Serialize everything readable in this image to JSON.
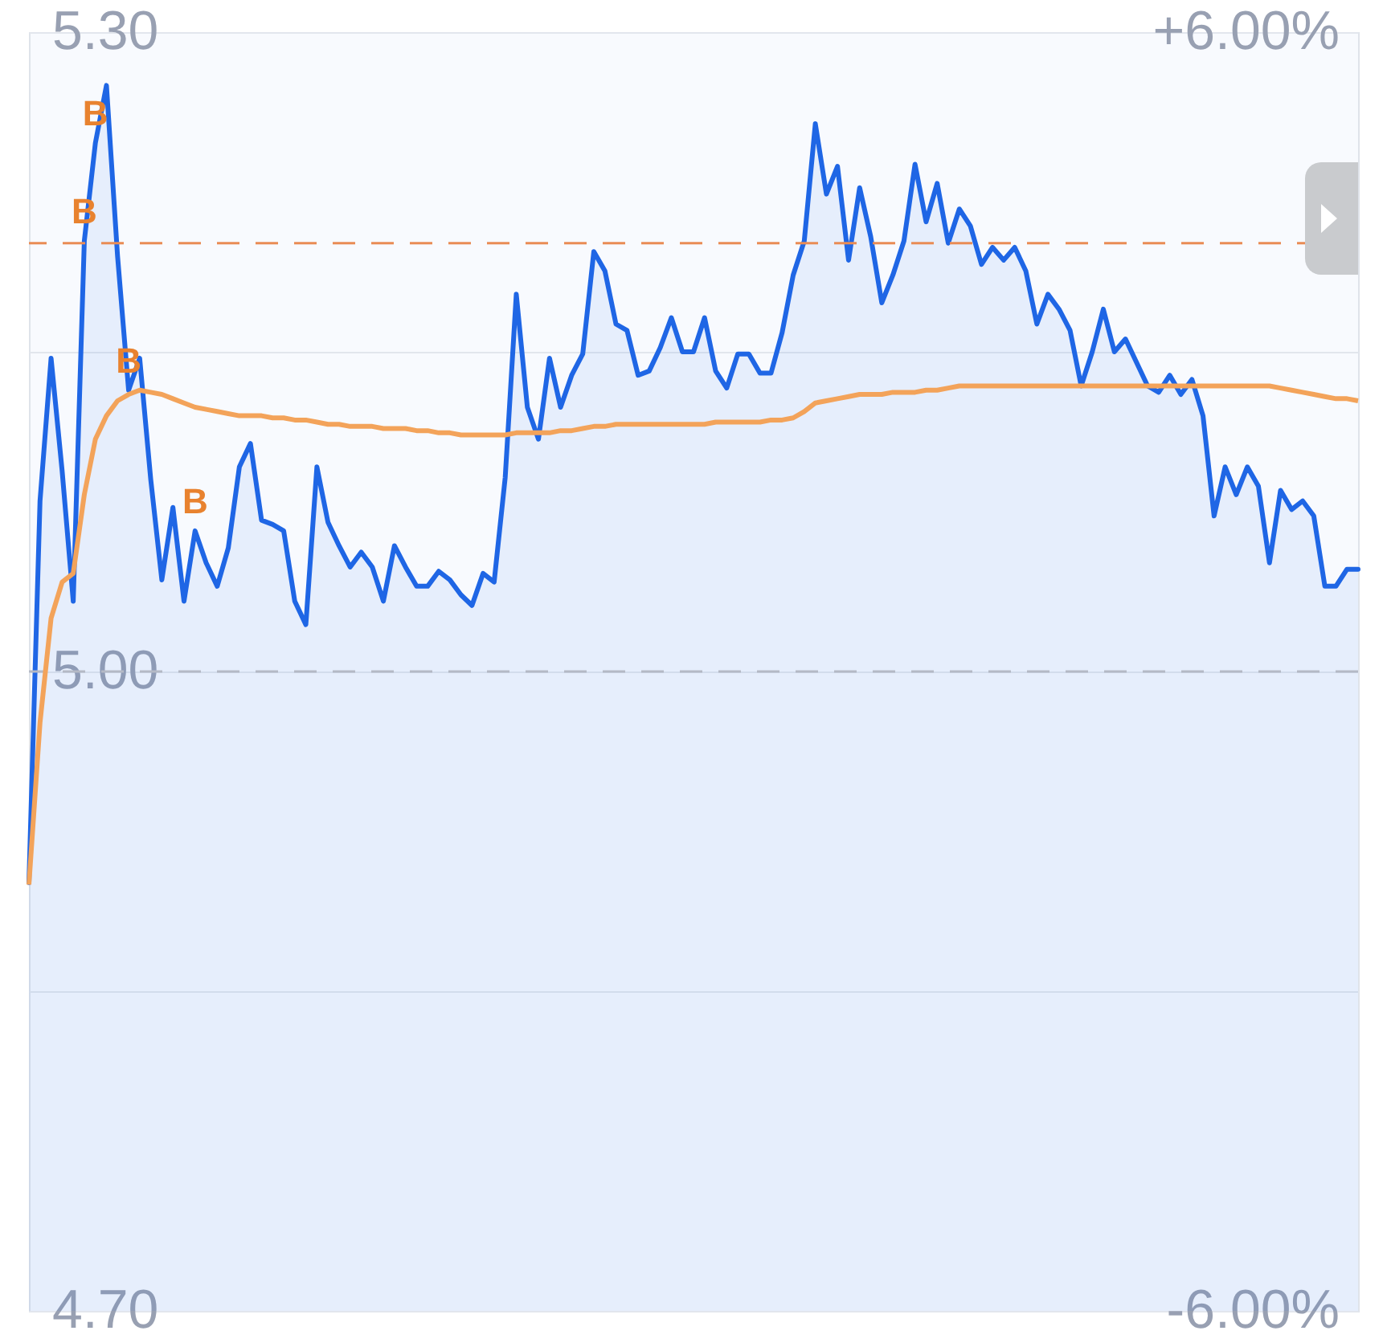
{
  "chart_data": {
    "type": "line",
    "categories": [
      null,
      null,
      null,
      null,
      null,
      null,
      null,
      null,
      null,
      null,
      null,
      null,
      null,
      null,
      null,
      null,
      null,
      null,
      null,
      null,
      null,
      null,
      null,
      null,
      null,
      null,
      null,
      null,
      null,
      null,
      null,
      null,
      null,
      null,
      null,
      null,
      null,
      null,
      null,
      null,
      null,
      null,
      null,
      null,
      null,
      null,
      null,
      null,
      null,
      null,
      null,
      null,
      null,
      null,
      null,
      null,
      null,
      null,
      null,
      null,
      null,
      null,
      null,
      null,
      null,
      null,
      null,
      null,
      null,
      null,
      null,
      null,
      null,
      null,
      null,
      null,
      null,
      null,
      null,
      null,
      null,
      null,
      null,
      null,
      null,
      null,
      null,
      null,
      null,
      null,
      null,
      null,
      null,
      null,
      null,
      null,
      null,
      null,
      null,
      null,
      null,
      null,
      null,
      null,
      null,
      null,
      null,
      null,
      null,
      null,
      null,
      null,
      null,
      null,
      null,
      null,
      null,
      null,
      null,
      null,
      null
    ],
    "ylim": [
      4.7,
      5.3
    ],
    "yticks": [
      {
        "value": 5.3,
        "label": "5.30"
      },
      {
        "value": 5.15,
        "label": null
      },
      {
        "value": 5.0,
        "label": "5.00"
      },
      {
        "value": 4.85,
        "label": null
      },
      {
        "value": 4.7,
        "label": "4.70"
      }
    ],
    "y2lim": [
      -6,
      6
    ],
    "y2ticks": [
      {
        "value": 6,
        "label": "+6.00%"
      },
      {
        "value": -6,
        "label": "-6.00%"
      }
    ],
    "grid": "y",
    "series": [
      {
        "type": "area",
        "color": "#1f66e5",
        "values": [
          4.901,
          5.08,
          5.147,
          5.094,
          5.033,
          5.202,
          5.248,
          5.275,
          5.195,
          5.132,
          5.147,
          5.09,
          5.043,
          5.077,
          5.033,
          5.066,
          5.051,
          5.04,
          5.058,
          5.096,
          5.107,
          5.071,
          5.069,
          5.066,
          5.033,
          5.022,
          5.096,
          5.07,
          5.059,
          5.049,
          5.056,
          5.049,
          5.033,
          5.059,
          5.049,
          5.04,
          5.04,
          5.047,
          5.043,
          5.036,
          5.031,
          5.046,
          5.042,
          5.091,
          5.177,
          5.124,
          5.109,
          5.147,
          5.124,
          5.139,
          5.149,
          5.197,
          5.188,
          5.163,
          5.16,
          5.139,
          5.141,
          5.152,
          5.166,
          5.15,
          5.15,
          5.166,
          5.141,
          5.133,
          5.149,
          5.149,
          5.14,
          5.14,
          5.159,
          5.186,
          5.202,
          5.257,
          5.224,
          5.237,
          5.193,
          5.227,
          5.204,
          5.173,
          5.186,
          5.202,
          5.238,
          5.211,
          5.229,
          5.201,
          5.217,
          5.209,
          5.191,
          5.199,
          5.193,
          5.199,
          5.188,
          5.163,
          5.177,
          5.17,
          5.16,
          5.134,
          5.15,
          5.17,
          5.15,
          5.156,
          5.145,
          5.134,
          5.131,
          5.139,
          5.13,
          5.137,
          5.12,
          5.073,
          5.096,
          5.083,
          5.096,
          5.087,
          5.051,
          5.085,
          5.076,
          5.08,
          5.073,
          5.04,
          5.04,
          5.048,
          5.048
        ]
      },
      {
        "type": "line",
        "color": "#f3a35a",
        "values": [
          4.9,
          4.976,
          5.025,
          5.042,
          5.046,
          5.083,
          5.109,
          5.12,
          5.127,
          5.13,
          5.132,
          5.131,
          5.13,
          5.128,
          5.126,
          5.124,
          5.123,
          5.122,
          5.121,
          5.12,
          5.12,
          5.12,
          5.119,
          5.119,
          5.118,
          5.118,
          5.117,
          5.116,
          5.116,
          5.115,
          5.115,
          5.115,
          5.114,
          5.114,
          5.114,
          5.113,
          5.113,
          5.112,
          5.112,
          5.111,
          5.111,
          5.111,
          5.111,
          5.111,
          5.112,
          5.112,
          5.112,
          5.112,
          5.113,
          5.113,
          5.114,
          5.115,
          5.115,
          5.116,
          5.116,
          5.116,
          5.116,
          5.116,
          5.116,
          5.116,
          5.116,
          5.116,
          5.117,
          5.117,
          5.117,
          5.117,
          5.117,
          5.118,
          5.118,
          5.119,
          5.122,
          5.126,
          5.127,
          5.128,
          5.129,
          5.13,
          5.13,
          5.13,
          5.131,
          5.131,
          5.131,
          5.132,
          5.132,
          5.133,
          5.134,
          5.134,
          5.134,
          5.134,
          5.134,
          5.134,
          5.134,
          5.134,
          5.134,
          5.134,
          5.134,
          5.134,
          5.134,
          5.134,
          5.134,
          5.134,
          5.134,
          5.134,
          5.134,
          5.134,
          5.134,
          5.134,
          5.134,
          5.134,
          5.134,
          5.134,
          5.134,
          5.134,
          5.134,
          5.133,
          5.132,
          5.131,
          5.13,
          5.129,
          5.128,
          5.128,
          5.127
        ]
      }
    ],
    "ref_lines": [
      {
        "axis": "y",
        "value": 5.0,
        "color": "#b4b9c5",
        "line_style": "dashed"
      },
      {
        "axis": "y",
        "value": 5.201,
        "color": "#e98c55",
        "line_style": "dashed"
      }
    ],
    "annotations": [
      {
        "text": "B",
        "y": 5.202
      },
      {
        "text": "B",
        "y": 5.132
      },
      {
        "text": "B",
        "y": 5.248
      },
      {
        "text": "B",
        "y": 5.066
      }
    ]
  }
}
